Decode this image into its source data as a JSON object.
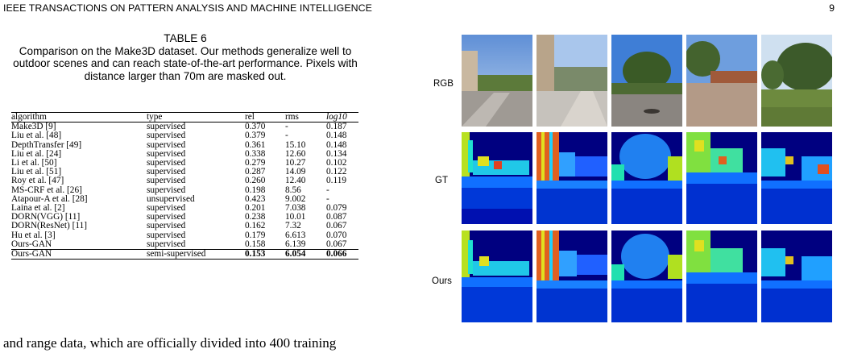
{
  "header": {
    "journal": "IEEE TRANSACTIONS ON PATTERN ANALYSIS AND MACHINE INTELLIGENCE",
    "page": "9"
  },
  "caption": {
    "number": "TABLE 6",
    "text": "Comparison on the Make3D dataset. Our methods generalize well to outdoor scenes and can reach state-of-the-art performance. Pixels with distance larger than 70m are masked out."
  },
  "table": {
    "headers": [
      "algorithm",
      "type",
      "rel",
      "rms",
      "log10"
    ],
    "rows": [
      [
        "Make3D [9]",
        "supervised",
        "0.370",
        "-",
        "0.187"
      ],
      [
        "Liu et al. [48]",
        "supervised",
        "0.379",
        "-",
        "0.148"
      ],
      [
        "DepthTransfer [49]",
        "supervised",
        "0.361",
        "15.10",
        "0.148"
      ],
      [
        "Liu et al. [24]",
        "supervised",
        "0.338",
        "12.60",
        "0.134"
      ],
      [
        "Li et al. [50]",
        "supervised",
        "0.279",
        "10.27",
        "0.102"
      ],
      [
        "Liu et al. [51]",
        "supervised",
        "0.287",
        "14.09",
        "0.122"
      ],
      [
        "Roy et al. [47]",
        "supervised",
        "0.260",
        "12.40",
        "0.119"
      ],
      [
        "MS-CRF et al. [26]",
        "supervised",
        "0.198",
        "8.56",
        "-"
      ],
      [
        "Atapour-A et al. [28]",
        "unsupervised",
        "0.423",
        "9.002",
        "-"
      ],
      [
        "Laina et al. [2]",
        "supervised",
        "0.201",
        "7.038",
        "0.079"
      ],
      [
        "DORN(VGG) [11]",
        "supervised",
        "0.238",
        "10.01",
        "0.087"
      ],
      [
        "DORN(ResNet) [11]",
        "supervised",
        "0.162",
        "7.32",
        "0.067"
      ],
      [
        "Hu et al. [3]",
        "supervised",
        "0.179",
        "6.613",
        "0.070"
      ],
      [
        "Ours-GAN",
        "supervised",
        "0.158",
        "6.139",
        "0.067"
      ],
      [
        "Ours-GAN",
        "semi-supervised",
        "0.153",
        "6.054",
        "0.066"
      ]
    ]
  },
  "body_text": "and range data, which are officially divided into 400 training",
  "figure": {
    "row_labels": [
      "RGB",
      "GT",
      "Ours"
    ]
  }
}
